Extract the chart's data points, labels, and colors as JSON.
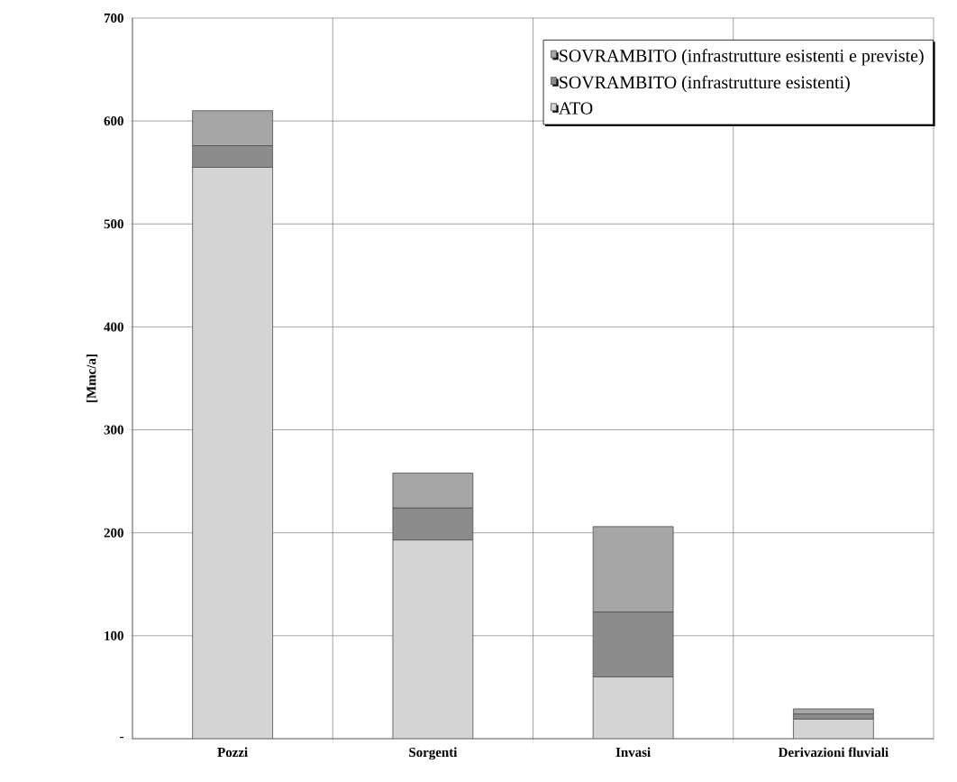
{
  "chart_data": {
    "type": "bar",
    "ylabel": "[Mmc/a]",
    "categories": [
      "Pozzi",
      "Sorgenti",
      "Invasi",
      "Derivazioni fluviali"
    ],
    "stacked": true,
    "series": [
      {
        "name": "ATO",
        "color": "#d4d4d4",
        "values": [
          555,
          193,
          60,
          19
        ]
      },
      {
        "name": "SOVRAMBITO (infrastrutture esistenti)",
        "color": "#8c8c8c",
        "values": [
          21,
          31,
          63,
          5
        ]
      },
      {
        "name": "SOVRAMBITO (infrastrutture esistenti e previste)",
        "color": "#a6a6a6",
        "values": [
          34,
          34,
          83,
          5
        ]
      }
    ],
    "ylim": [
      0,
      700
    ],
    "yticks": [
      {
        "value": 0,
        "label": "-"
      },
      100,
      200,
      300,
      400,
      500,
      600,
      700
    ],
    "grid": true,
    "legend": "top right"
  }
}
